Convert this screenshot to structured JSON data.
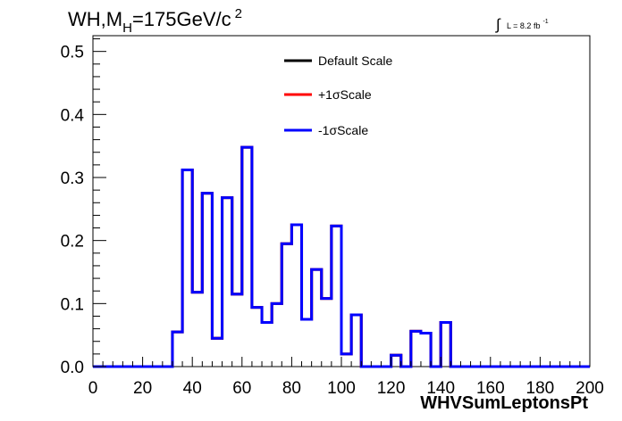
{
  "chart_data": {
    "type": "line",
    "title_parts": {
      "main": "WH,M",
      "sub": "H",
      "rest": "=175GeV/c",
      "sup": "2"
    },
    "lumi_parts": {
      "integral": "∫",
      "text": "L = 8.2 fb",
      "sup": "-1"
    },
    "xlabel": "WHVSumLeptonsPt",
    "ylabel": "",
    "xlim": [
      0,
      200
    ],
    "ylim": [
      0,
      0.525
    ],
    "x_ticks": [
      "0",
      "20",
      "40",
      "60",
      "80",
      "100",
      "120",
      "140",
      "160",
      "180",
      "200"
    ],
    "y_ticks": [
      "0.0",
      "0.1",
      "0.2",
      "0.3",
      "0.4",
      "0.5"
    ],
    "legend_position": "top-center",
    "grid": false,
    "bin_width": 4,
    "series": [
      {
        "name": "Default Scale",
        "color": "#000000"
      },
      {
        "name": "+1σScale",
        "color": "#ff0000"
      },
      {
        "name": "-1σScale",
        "color": "#0000ff"
      }
    ],
    "bin_edges": [
      0,
      4,
      8,
      12,
      16,
      20,
      24,
      28,
      32,
      36,
      40,
      44,
      48,
      52,
      56,
      60,
      64,
      68,
      72,
      76,
      80,
      84,
      88,
      92,
      96,
      100,
      104,
      108,
      112,
      116,
      120,
      124,
      128,
      132,
      136,
      140,
      144,
      148,
      152,
      156,
      160,
      164,
      168,
      172,
      176,
      180,
      184,
      188,
      192,
      196,
      200
    ],
    "values": [
      0,
      0,
      0,
      0,
      0,
      0,
      0,
      0,
      0.055,
      0.312,
      0.118,
      0.275,
      0.045,
      0.268,
      0.115,
      0.348,
      0.094,
      0.07,
      0.1,
      0.195,
      0.225,
      0.075,
      0.154,
      0.108,
      0.223,
      0.02,
      0.082,
      0,
      0,
      0,
      0.018,
      0,
      0.056,
      0.053,
      0,
      0.07,
      0,
      0,
      0,
      0,
      0,
      0,
      0,
      0,
      0,
      0,
      0,
      0,
      0,
      0
    ]
  }
}
